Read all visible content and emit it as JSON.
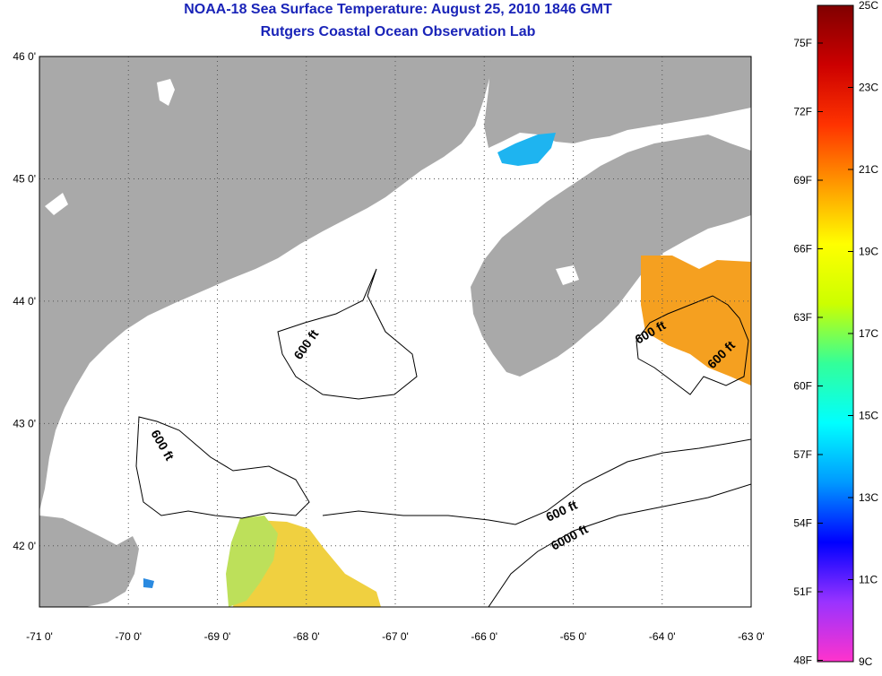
{
  "header": {
    "title": "NOAA-18 Sea Surface Temperature:  August 25, 2010 1846 GMT",
    "subtitle": "Rutgers Coastal Ocean Observation Lab"
  },
  "axes": {
    "lon_ticks": [
      "-71 0'",
      "-70 0'",
      "-69 0'",
      "-68 0'",
      "-67 0'",
      "-66 0'",
      "-65 0'",
      "-64 0'",
      "-63 0'"
    ],
    "lat_ticks": [
      "46 0'",
      "45 0'",
      "44 0'",
      "43 0'",
      "42 0'"
    ],
    "lon_range": [
      -71,
      -63
    ],
    "lat_range": [
      41.5,
      46
    ]
  },
  "contours": {
    "labels": [
      "600 ft",
      "600 ft",
      "600 ft",
      "600 ft",
      "600 ft",
      "6000 ft"
    ]
  },
  "colorbar": {
    "fahrenheit": [
      "75F",
      "72F",
      "69F",
      "66F",
      "63F",
      "60F",
      "57F",
      "54F",
      "51F",
      "48F"
    ],
    "celsius": [
      "25C",
      "23C",
      "21C",
      "19C",
      "17C",
      "15C",
      "13C",
      "11C",
      "9C"
    ],
    "colors": [
      "#ff33cc",
      "#9933ff",
      "#0000ff",
      "#0099ff",
      "#00ffff",
      "#33ff99",
      "#ccff00",
      "#ffff00",
      "#ff9900",
      "#ff3300",
      "#cc0000",
      "#800000"
    ]
  },
  "colors": {
    "land": "#a9a9a9",
    "ocean": "#ffffff",
    "title": "#1a24b8",
    "contour": "#000000"
  }
}
